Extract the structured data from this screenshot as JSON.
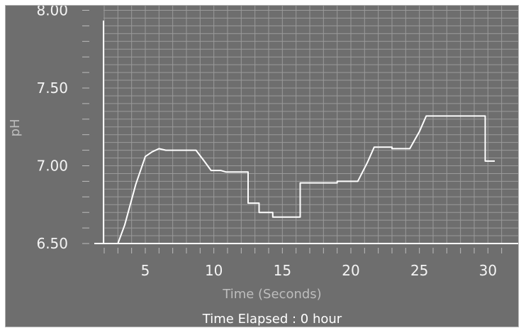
{
  "chart_data": {
    "type": "line",
    "title": "",
    "xlabel": "Time (Seconds)",
    "ylabel": "pH",
    "status_text": "Time Elapsed : 0 hour",
    "xlim": [
      1.8,
      30.5
    ],
    "ylim": [
      6.5,
      8.0
    ],
    "x_ticks": [
      5,
      10,
      15,
      20,
      25,
      30
    ],
    "x_tick_labels": [
      "5",
      "10",
      "15",
      "20",
      "25",
      "30"
    ],
    "y_ticks": [
      6.5,
      7.0,
      7.5,
      8.0
    ],
    "y_tick_labels": [
      "6.50",
      "7.00",
      "7.50",
      "8.00"
    ],
    "grid": true,
    "colors": {
      "background": "#6e6e6e",
      "grid": "#9a9a9a",
      "line": "#ffffff",
      "axis": "#ffffff"
    },
    "series": [
      {
        "values_xy": [
          [
            3.0,
            6.5
          ],
          [
            3.5,
            6.62
          ],
          [
            4.3,
            6.88
          ],
          [
            5.0,
            7.06
          ],
          [
            5.5,
            7.09
          ],
          [
            6.0,
            7.11
          ],
          [
            6.5,
            7.1
          ],
          [
            7.0,
            7.1
          ],
          [
            8.0,
            7.1
          ],
          [
            8.7,
            7.1
          ],
          [
            9.3,
            7.03
          ],
          [
            9.8,
            6.97
          ],
          [
            10.5,
            6.97
          ],
          [
            10.9,
            6.96
          ],
          [
            12.5,
            6.96
          ],
          [
            12.5,
            6.76
          ],
          [
            13.3,
            6.76
          ],
          [
            13.3,
            6.7
          ],
          [
            14.3,
            6.7
          ],
          [
            14.3,
            6.67
          ],
          [
            16.3,
            6.67
          ],
          [
            16.3,
            6.89
          ],
          [
            19.0,
            6.89
          ],
          [
            19.0,
            6.9
          ],
          [
            20.5,
            6.9
          ],
          [
            21.2,
            7.02
          ],
          [
            21.7,
            7.12
          ],
          [
            23.0,
            7.12
          ],
          [
            23.0,
            7.11
          ],
          [
            24.3,
            7.11
          ],
          [
            25.0,
            7.22
          ],
          [
            25.5,
            7.32
          ],
          [
            29.8,
            7.32
          ],
          [
            29.8,
            7.03
          ],
          [
            30.5,
            7.03
          ]
        ]
      }
    ]
  }
}
